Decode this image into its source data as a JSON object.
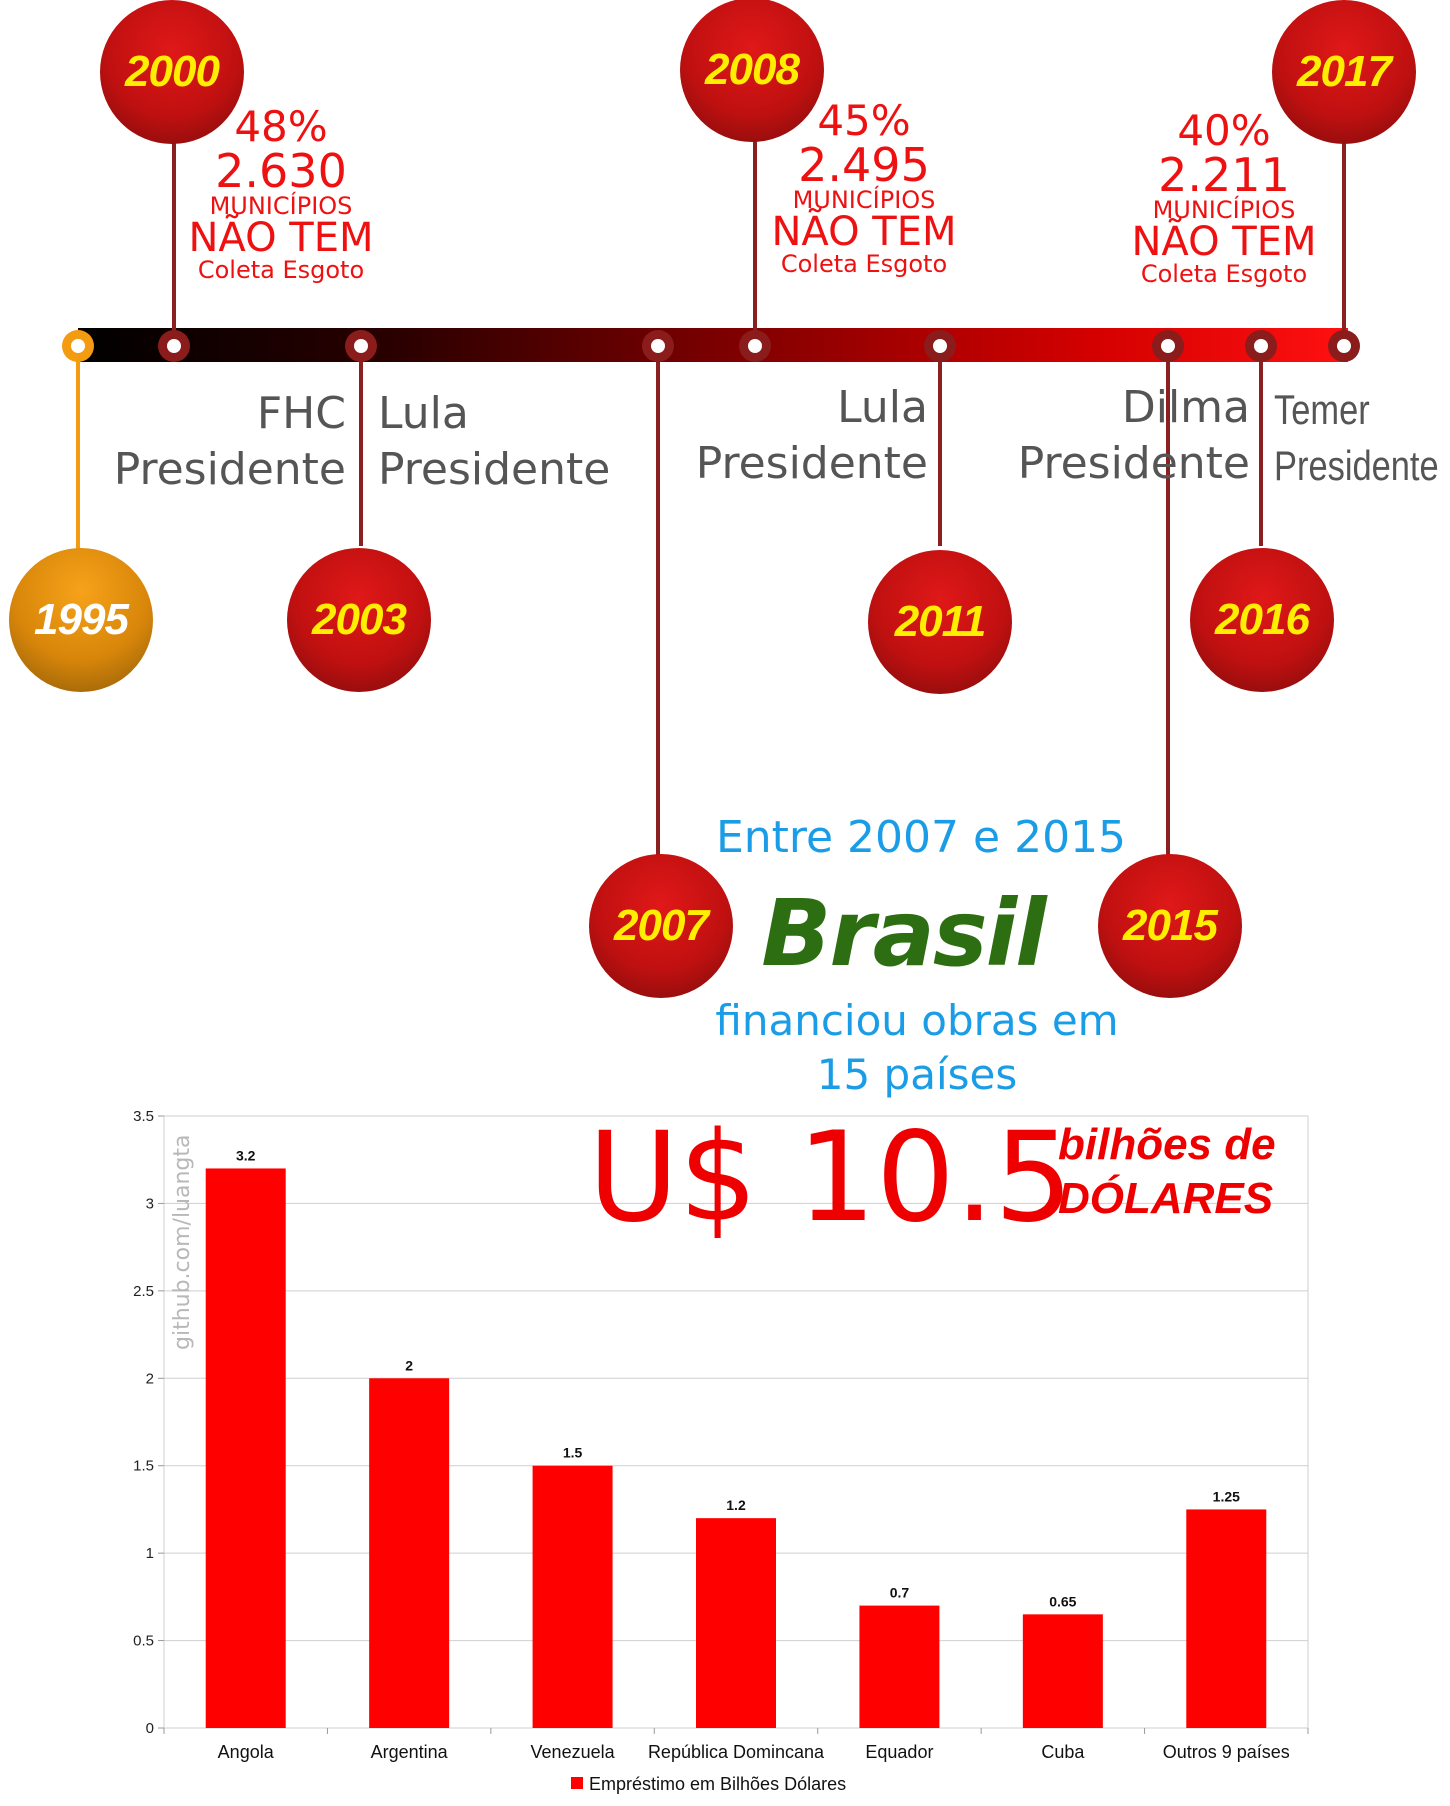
{
  "timeline": {
    "events": [
      {
        "year": "1995",
        "role": "president",
        "name": "FHC",
        "title": "Presidente"
      },
      {
        "year": "2000",
        "role": "stat",
        "pct": "48%",
        "count": "2.630",
        "municipios": "MUNICÍPIOS",
        "nao_tem": "NÃO TEM",
        "coleta": "Coleta Esgoto"
      },
      {
        "year": "2003",
        "role": "president",
        "name": "Lula",
        "title": "Presidente"
      },
      {
        "year": "2007"
      },
      {
        "year": "2008",
        "role": "stat",
        "pct": "45%",
        "count": "2.495",
        "municipios": "MUNICÍPIOS",
        "nao_tem": "NÃO TEM",
        "coleta": "Coleta Esgoto"
      },
      {
        "year": "2011",
        "role": "president",
        "name": "Lula",
        "title": "Presidente"
      },
      {
        "year": "2015",
        "role": "president",
        "name": "Dilma",
        "title": "Presidente"
      },
      {
        "year": "2016",
        "role": "president",
        "name": "Temer",
        "title": "Presidente"
      },
      {
        "year": "2017",
        "role": "stat",
        "pct": "40%",
        "count": "2.211",
        "municipios": "MUNICÍPIOS",
        "nao_tem": "NÃO TEM",
        "coleta": "Coleta Esgoto"
      }
    ]
  },
  "headline": {
    "line1": "Entre 2007 e 2015",
    "country": "Brasil",
    "line2": "financiou obras em",
    "line3": "15 países",
    "amount": "U$ 10.5",
    "unit_line1": "bilhões de",
    "unit_line2": "DÓLARES"
  },
  "watermark": "github.com/luangta",
  "colors": {
    "bar": "#ff0000",
    "accent_red": "#ee1111",
    "year_text": "#ffee00",
    "blue_text": "#1a9de6",
    "brasil_green": "#2e6e12",
    "stem": "#8b2020",
    "orange": "#f39c12"
  },
  "chart_data": {
    "type": "bar",
    "categories": [
      "Angola",
      "Argentina",
      "Venezuela",
      "República Domincana",
      "Equador",
      "Cuba",
      "Outros 9 países"
    ],
    "series": [
      {
        "name": "Empréstimo em Bilhões Dólares",
        "values": [
          3.2,
          2,
          1.5,
          1.2,
          0.7,
          0.65,
          1.25
        ]
      }
    ],
    "data_labels": [
      "3.2",
      "2",
      "1.5",
      "1.2",
      "0.7",
      "0.65",
      "1.25"
    ],
    "yticks": [
      "0",
      "0.5",
      "1",
      "1.5",
      "2",
      "2.5",
      "3",
      "3.5"
    ],
    "ylim": [
      0,
      3.5
    ],
    "grid": true,
    "legend": "bottom"
  }
}
